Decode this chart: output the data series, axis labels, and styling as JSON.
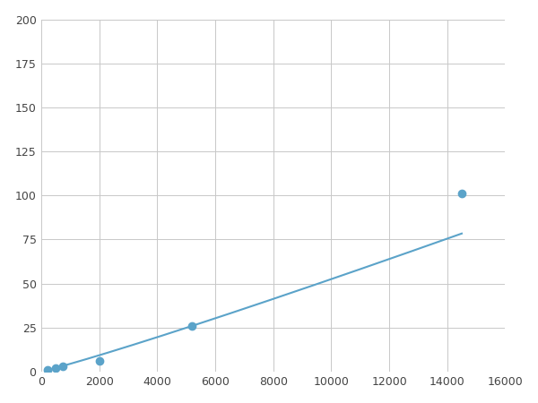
{
  "x": [
    200,
    500,
    750,
    2000,
    5200,
    14500
  ],
  "y": [
    1,
    2,
    3,
    6,
    26,
    101
  ],
  "line_color": "#5ba3c9",
  "marker_color": "#5ba3c9",
  "marker_size": 6,
  "marker_style": "o",
  "line_width": 1.5,
  "xlim": [
    0,
    16000
  ],
  "ylim": [
    0,
    200
  ],
  "xticks": [
    0,
    2000,
    4000,
    6000,
    8000,
    10000,
    12000,
    14000,
    16000
  ],
  "yticks": [
    0,
    25,
    50,
    75,
    100,
    125,
    150,
    175,
    200
  ],
  "grid_color": "#c8c8c8",
  "background_color": "#ffffff",
  "figure_background": "#ffffff"
}
